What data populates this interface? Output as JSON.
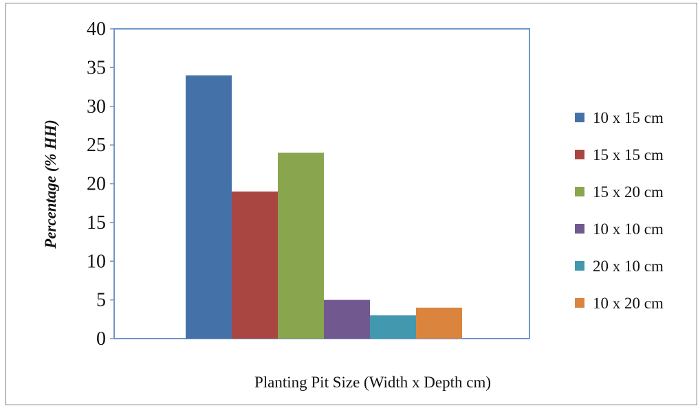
{
  "chart_data": {
    "type": "bar",
    "title": "",
    "xlabel": "Planting Pit Size (Width x Depth cm)",
    "ylabel": "Percentage (% HH)",
    "ylim": [
      0,
      40
    ],
    "yticks": [
      "0",
      "5",
      "10",
      "15",
      "20",
      "25",
      "30",
      "35",
      "40"
    ],
    "categories": [
      ""
    ],
    "grid": false,
    "legend_position": "right",
    "series": [
      {
        "name": "10 x 15 cm",
        "values": [
          34
        ],
        "color": "#4472a8"
      },
      {
        "name": "15 x 15 cm",
        "values": [
          19
        ],
        "color": "#a94642"
      },
      {
        "name": "15 x 20 cm",
        "values": [
          24
        ],
        "color": "#89a54e"
      },
      {
        "name": "10 x 10 cm",
        "values": [
          5
        ],
        "color": "#71588f"
      },
      {
        "name": "20 x 10 cm",
        "values": [
          3
        ],
        "color": "#4198af"
      },
      {
        "name": "10 x 20 cm",
        "values": [
          4
        ],
        "color": "#db843d"
      }
    ],
    "plot_border_color": "#6f95c8",
    "frame_color": "#7a7a7a"
  }
}
